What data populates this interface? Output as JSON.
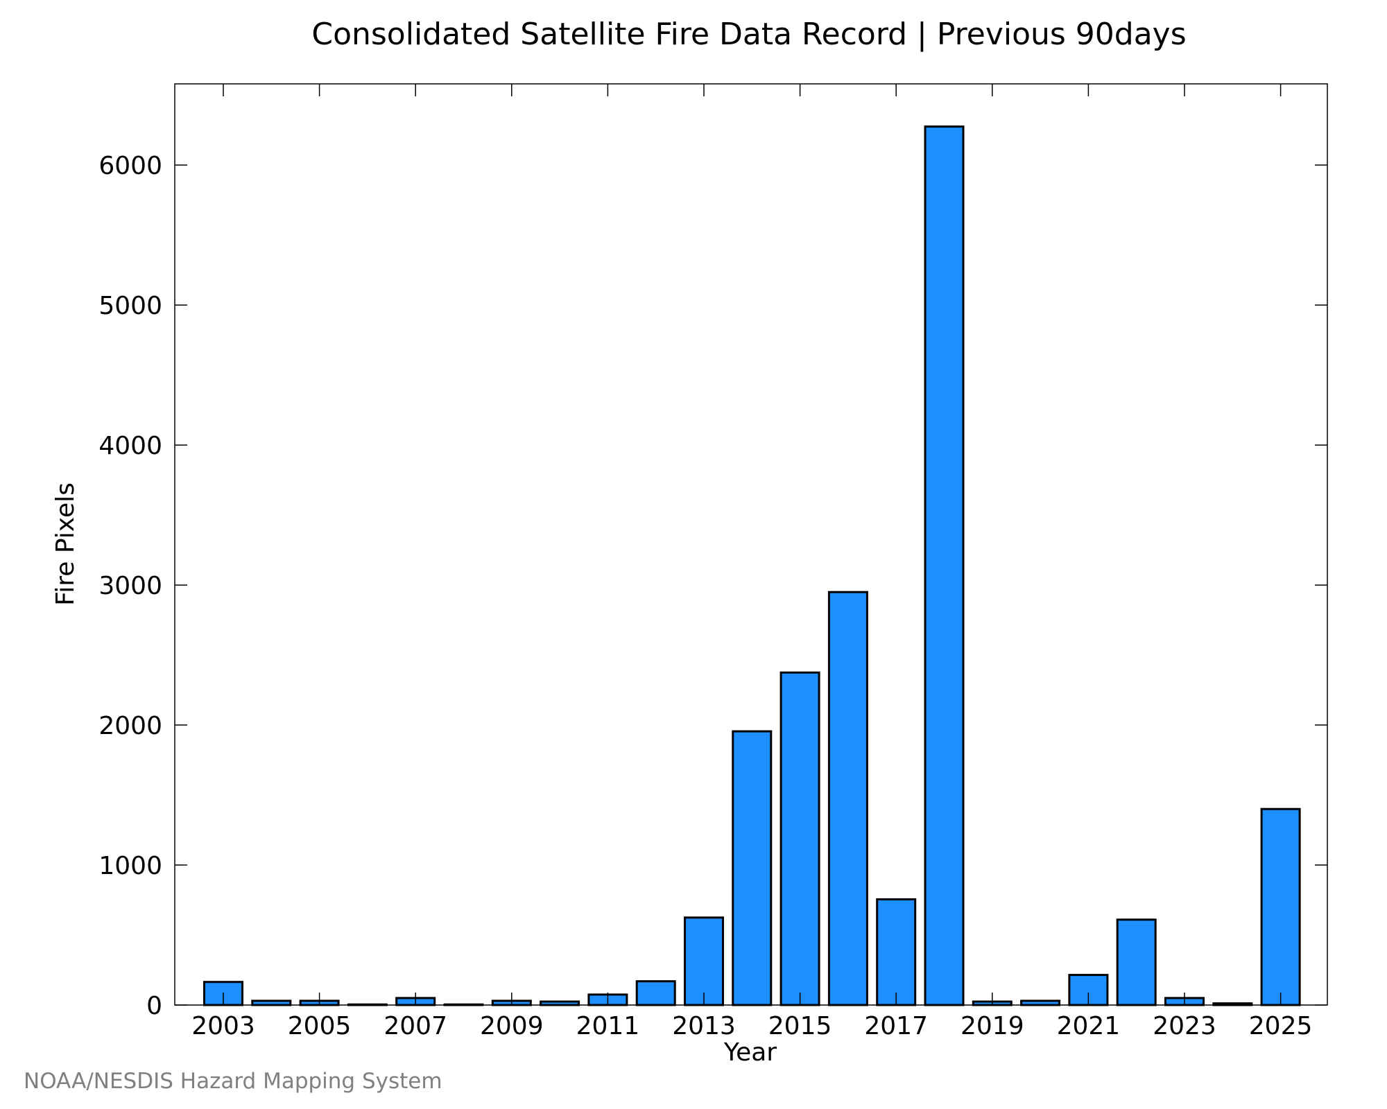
{
  "chart_data": {
    "type": "bar",
    "title": "Consolidated Satellite Fire Data Record | Previous 90days",
    "xlabel": "Year",
    "ylabel": "Fire Pixels",
    "categories": [
      "2003",
      "2004",
      "2005",
      "2006",
      "2007",
      "2008",
      "2009",
      "2010",
      "2011",
      "2012",
      "2013",
      "2014",
      "2015",
      "2016",
      "2017",
      "2018",
      "2019",
      "2020",
      "2021",
      "2022",
      "2023",
      "2024",
      "2025"
    ],
    "values": [
      165,
      30,
      30,
      4,
      50,
      4,
      30,
      25,
      75,
      170,
      625,
      1955,
      2375,
      2950,
      755,
      6275,
      25,
      30,
      215,
      610,
      50,
      12,
      1400
    ],
    "x_tick_labels": [
      "2003",
      "2005",
      "2007",
      "2009",
      "2011",
      "2013",
      "2015",
      "2017",
      "2019",
      "2021",
      "2023",
      "2025"
    ],
    "y_tick_labels": [
      "0",
      "1000",
      "2000",
      "3000",
      "4000",
      "5000",
      "6000"
    ],
    "xlim": [
      2002,
      2026
    ],
    "ylim": [
      0,
      6580
    ],
    "grid": false,
    "bar_color": "#1e8fff",
    "bar_edge_color": "#000000"
  },
  "credit": "NOAA/NESDIS Hazard Mapping System"
}
